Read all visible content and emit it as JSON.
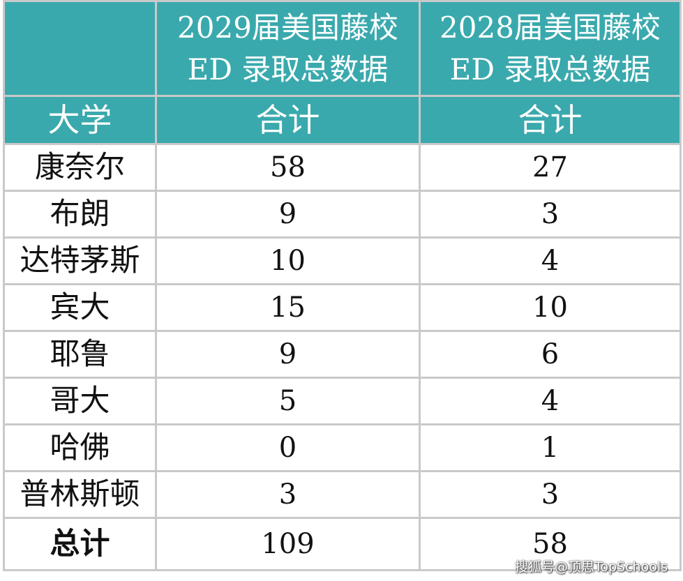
{
  "header": {
    "col1_title_line1": "2029届美国藤校",
    "col1_title_line2": "ED 录取总数据",
    "col2_title_line1": "2028届美国藤校",
    "col2_title_line2": "ED 录取总数据",
    "school_label": "大学",
    "col1_sub": "合计",
    "col2_sub": "合计"
  },
  "rows": [
    {
      "school": "康奈尔",
      "y2029": "58",
      "y2028": "27"
    },
    {
      "school": "布朗",
      "y2029": "9",
      "y2028": "3"
    },
    {
      "school": "达特茅斯",
      "y2029": "10",
      "y2028": "4"
    },
    {
      "school": "宾大",
      "y2029": "15",
      "y2028": "10"
    },
    {
      "school": "耶鲁",
      "y2029": "9",
      "y2028": "6"
    },
    {
      "school": "哥大",
      "y2029": "5",
      "y2028": "4"
    },
    {
      "school": "哈佛",
      "y2029": "0",
      "y2028": "1"
    },
    {
      "school": "普林斯顿",
      "y2029": "3",
      "y2028": "3"
    }
  ],
  "total": {
    "label": "总计",
    "y2029": "109",
    "y2028": "58"
  },
  "watermark": "搜狐号@顶思TopSchools",
  "colors": {
    "header_bg": "#3aa9ad",
    "grid": "#c9c9c9",
    "text": "#111111"
  }
}
